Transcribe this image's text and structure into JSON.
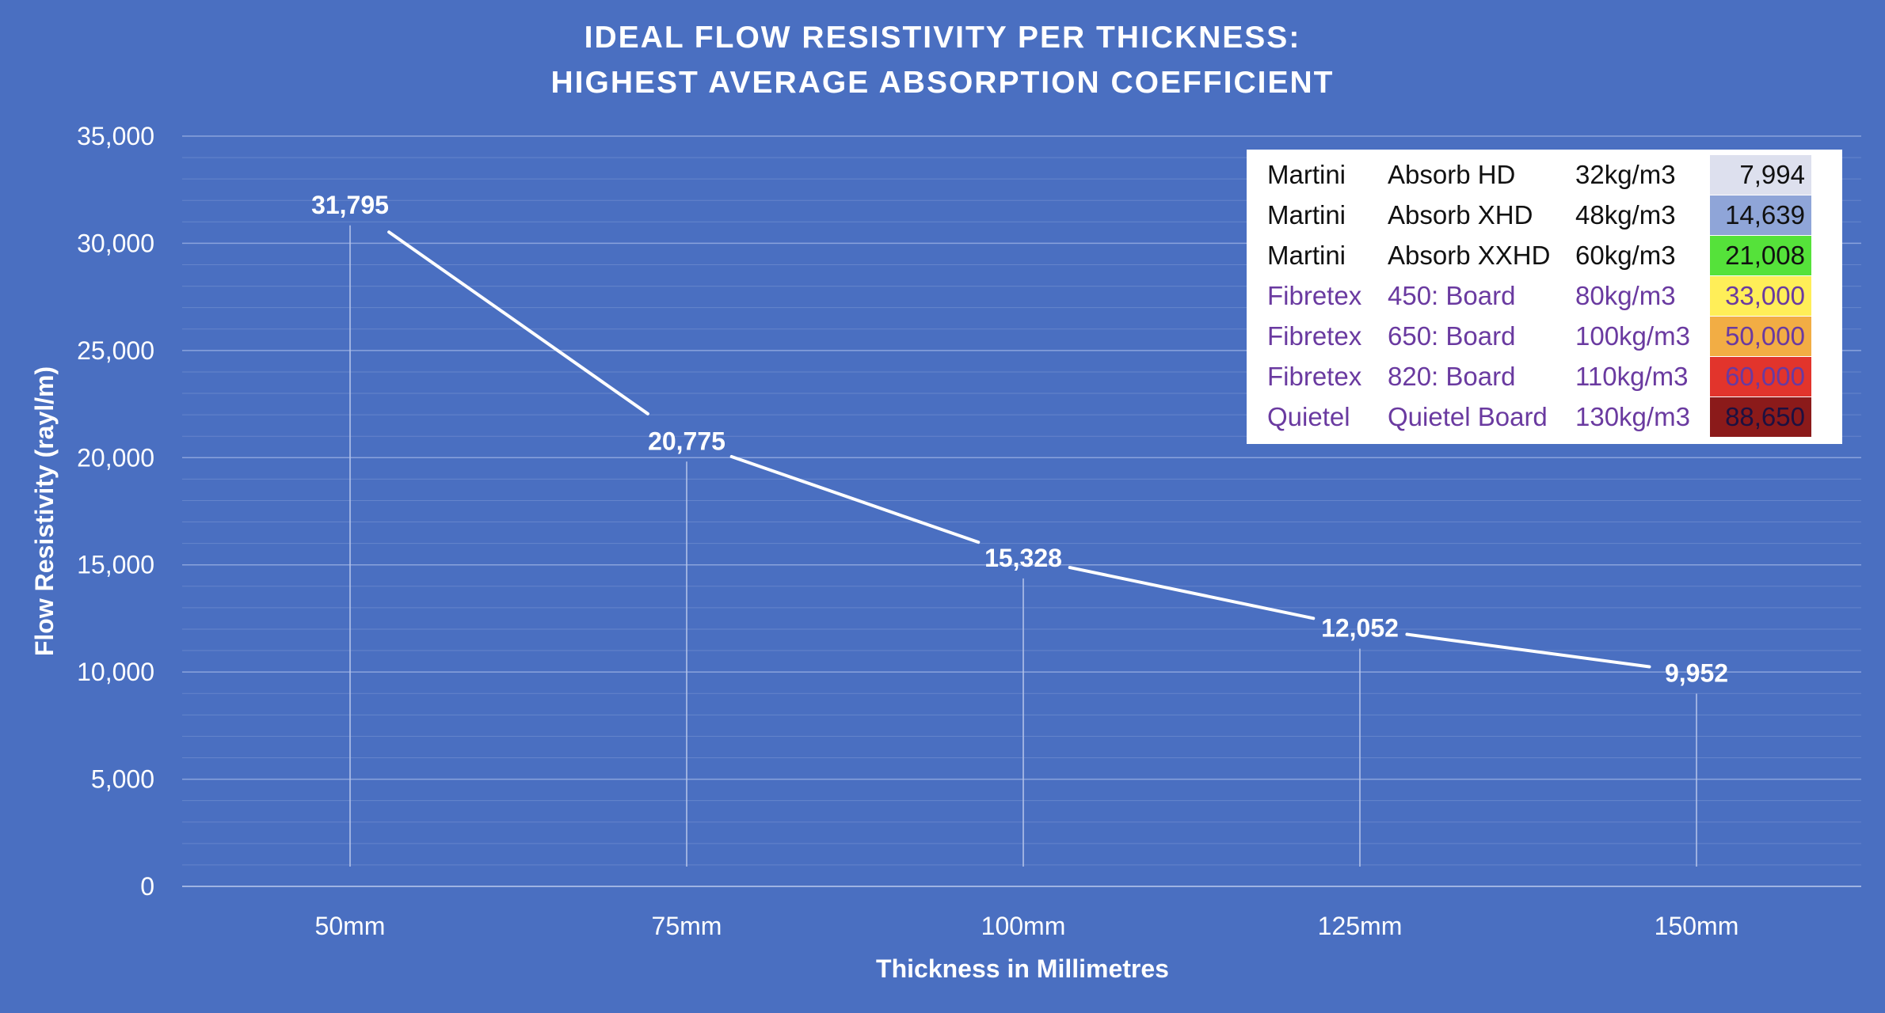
{
  "chart_data": {
    "type": "line",
    "title": [
      "IDEAL FLOW RESISTIVITY PER THICKNESS:",
      "HIGHEST AVERAGE ABSORPTION COEFFICIENT"
    ],
    "xlabel": "Thickness in Millimetres",
    "ylabel": "Flow Resistivity (rayl/m)",
    "categories": [
      "50mm",
      "75mm",
      "100mm",
      "125mm",
      "150mm"
    ],
    "values": [
      31795,
      20775,
      15328,
      12052,
      9952
    ],
    "data_labels": [
      "31,795",
      "20,775",
      "15,328",
      "12,052",
      "9,952"
    ],
    "ylim": [
      0,
      35000
    ],
    "y_ticks": [
      0,
      5000,
      10000,
      15000,
      20000,
      25000,
      30000,
      35000
    ],
    "y_tick_labels": [
      "0",
      "5,000",
      "10,000",
      "15,000",
      "20,000",
      "25,000",
      "30,000",
      "35,000"
    ],
    "grid": true,
    "legend": "top-right"
  },
  "legend_table": [
    {
      "brand": "Martini",
      "product": "Absorb HD",
      "density": "32kg/m3",
      "value": "7,994",
      "text_color": "#111111",
      "swatch": "#dde0ee",
      "value_color": "#111111"
    },
    {
      "brand": "Martini",
      "product": "Absorb XHD",
      "density": "48kg/m3",
      "value": "14,639",
      "text_color": "#111111",
      "swatch": "#8fa5d8",
      "value_color": "#111111"
    },
    {
      "brand": "Martini",
      "product": "Absorb XXHD",
      "density": "60kg/m3",
      "value": "21,008",
      "text_color": "#111111",
      "swatch": "#55e23a",
      "value_color": "#111111"
    },
    {
      "brand": "Fibretex",
      "product": "450: Board",
      "density": "80kg/m3",
      "value": "33,000",
      "text_color": "#6a3aa0",
      "swatch": "#ffee58",
      "value_color": "#6a3aa0"
    },
    {
      "brand": "Fibretex",
      "product": "650: Board",
      "density": "100kg/m3",
      "value": "50,000",
      "text_color": "#6a3aa0",
      "swatch": "#f2ad44",
      "value_color": "#6a3aa0"
    },
    {
      "brand": "Fibretex",
      "product": "820: Board",
      "density": "110kg/m3",
      "value": "60,000",
      "text_color": "#6a3aa0",
      "swatch": "#e2342c",
      "value_color": "#6a3aa0"
    },
    {
      "brand": "Quietel",
      "product": "Quietel Board",
      "density": "130kg/m3",
      "value": "88,650",
      "text_color": "#6a3aa0",
      "swatch": "#8b1a1a",
      "value_color": "#1d1040"
    }
  ],
  "colors": {
    "background": "#4a6fc1",
    "line": "#ffffff",
    "grid": "#7390d2"
  }
}
